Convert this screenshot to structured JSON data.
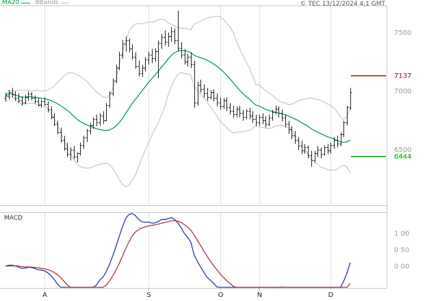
{
  "header": {
    "copyright": "© TEC 13/12/2024 4:1 GMT"
  },
  "chart_data": {
    "type": "candlestick",
    "title": "",
    "months": [
      {
        "label": "A",
        "index": 12
      },
      {
        "label": "S",
        "index": 44
      },
      {
        "label": "O",
        "index": 66
      },
      {
        "label": "N",
        "index": 78
      },
      {
        "label": "D",
        "index": 100
      }
    ],
    "y_axis": {
      "ylim": [
        6030,
        7730
      ],
      "labels": [
        {
          "text": "7500",
          "value": 7500
        },
        {
          "text": "7000",
          "value": 7000
        },
        {
          "text": "6500",
          "value": 6500
        }
      ]
    },
    "levels": [
      {
        "text": "7137",
        "value": 7137,
        "color": "#c00000",
        "name": "resistance-level"
      },
      {
        "text": "6444",
        "value": 6444,
        "color": "#009900",
        "name": "support-level"
      }
    ],
    "indicators": {
      "ma20": {
        "label": "MA20",
        "period": 20,
        "color": "#00a14b"
      },
      "bbands": {
        "label": "BBands",
        "period": 20,
        "mult": 2,
        "color": "#bdbdbd"
      },
      "macd": {
        "label": "MACD",
        "fast": 12,
        "slow": 26,
        "signal": 9,
        "colors": {
          "macd": "#2433c8",
          "signal": "#b03040"
        },
        "ylim": [
          -66.7,
          162.5
        ],
        "labels": [
          {
            "text": "1 00",
            "value": 100
          },
          {
            "text": "0 50",
            "value": 50
          },
          {
            "text": "0 00",
            "value": 0
          }
        ]
      }
    },
    "colors": {
      "candles": "#222222",
      "grid": "#e0e0e0",
      "frame": "#c8c8c8",
      "axis_text": "#9a9a9a",
      "month_text": "#222222"
    },
    "candles": [
      [
        6940,
        6990,
        6910,
        6960
      ],
      [
        6960,
        7010,
        6930,
        6990
      ],
      [
        6990,
        7030,
        6950,
        6970
      ],
      [
        6970,
        7000,
        6920,
        6940
      ],
      [
        6940,
        6980,
        6900,
        6920
      ],
      [
        6920,
        6960,
        6880,
        6900
      ],
      [
        6900,
        6970,
        6890,
        6950
      ],
      [
        6950,
        7000,
        6920,
        6975
      ],
      [
        6975,
        6995,
        6925,
        6940
      ],
      [
        6940,
        6965,
        6895,
        6910
      ],
      [
        6910,
        6940,
        6870,
        6885
      ],
      [
        6885,
        6930,
        6860,
        6915
      ],
      [
        6915,
        6945,
        6875,
        6890
      ],
      [
        6890,
        6910,
        6820,
        6840
      ],
      [
        6840,
        6870,
        6760,
        6780
      ],
      [
        6780,
        6810,
        6700,
        6720
      ],
      [
        6720,
        6750,
        6630,
        6650
      ],
      [
        6650,
        6690,
        6560,
        6580
      ],
      [
        6580,
        6620,
        6490,
        6510
      ],
      [
        6510,
        6560,
        6440,
        6460
      ],
      [
        6460,
        6520,
        6410,
        6500
      ],
      [
        6500,
        6530,
        6420,
        6440
      ],
      [
        6440,
        6480,
        6390,
        6470
      ],
      [
        6470,
        6560,
        6450,
        6540
      ],
      [
        6540,
        6620,
        6510,
        6600
      ],
      [
        6600,
        6680,
        6570,
        6660
      ],
      [
        6660,
        6730,
        6630,
        6710
      ],
      [
        6710,
        6780,
        6680,
        6760
      ],
      [
        6760,
        6800,
        6700,
        6730
      ],
      [
        6730,
        6810,
        6710,
        6790
      ],
      [
        6790,
        6830,
        6720,
        6750
      ],
      [
        6750,
        6900,
        6740,
        6880
      ],
      [
        6880,
        7000,
        6860,
        6980
      ],
      [
        6980,
        7110,
        6960,
        7090
      ],
      [
        7090,
        7230,
        7070,
        7200
      ],
      [
        7200,
        7340,
        7180,
        7310
      ],
      [
        7310,
        7440,
        7280,
        7400
      ],
      [
        7400,
        7470,
        7340,
        7430
      ],
      [
        7430,
        7450,
        7330,
        7360
      ],
      [
        7360,
        7400,
        7270,
        7290
      ],
      [
        7290,
        7330,
        7190,
        7210
      ],
      [
        7210,
        7260,
        7130,
        7150
      ],
      [
        7150,
        7230,
        7120,
        7200
      ],
      [
        7200,
        7290,
        7170,
        7270
      ],
      [
        7270,
        7340,
        7230,
        7310
      ],
      [
        7310,
        7360,
        7240,
        7280
      ],
      [
        7280,
        7370,
        7250,
        7340
      ],
      [
        7340,
        7430,
        7110,
        7410
      ],
      [
        7410,
        7490,
        7360,
        7460
      ],
      [
        7460,
        7520,
        7390,
        7420
      ],
      [
        7420,
        7500,
        7380,
        7470
      ],
      [
        7470,
        7550,
        7420,
        7510
      ],
      [
        7510,
        7540,
        7400,
        7430
      ],
      [
        7430,
        7690,
        7340,
        7370
      ],
      [
        7370,
        7420,
        7280,
        7310
      ],
      [
        7310,
        7360,
        7230,
        7250
      ],
      [
        7250,
        7320,
        7210,
        7290
      ],
      [
        7290,
        7330,
        7200,
        7230
      ],
      [
        7230,
        7260,
        6860,
        6900
      ],
      [
        6900,
        7080,
        6880,
        7050
      ],
      [
        7050,
        7100,
        6990,
        7020
      ],
      [
        7020,
        7060,
        6950,
        6980
      ],
      [
        6980,
        7030,
        6920,
        6950
      ],
      [
        6950,
        7010,
        6930,
        6990
      ],
      [
        6990,
        7020,
        6910,
        6940
      ],
      [
        6940,
        6980,
        6870,
        6900
      ],
      [
        6900,
        6950,
        6840,
        6870
      ],
      [
        6870,
        6940,
        6850,
        6920
      ],
      [
        6920,
        6950,
        6830,
        6860
      ],
      [
        6860,
        6900,
        6800,
        6830
      ],
      [
        6830,
        6880,
        6770,
        6800
      ],
      [
        6800,
        6870,
        6780,
        6850
      ],
      [
        6850,
        6880,
        6780,
        6810
      ],
      [
        6810,
        6840,
        6750,
        6780
      ],
      [
        6780,
        6850,
        6760,
        6830
      ],
      [
        6830,
        6860,
        6760,
        6790
      ],
      [
        6790,
        6830,
        6730,
        6760
      ],
      [
        6760,
        6800,
        6700,
        6730
      ],
      [
        6730,
        6800,
        6710,
        6780
      ],
      [
        6780,
        6810,
        6720,
        6750
      ],
      [
        6750,
        6790,
        6690,
        6720
      ],
      [
        6720,
        6800,
        6700,
        6770
      ],
      [
        6770,
        6840,
        6750,
        6820
      ],
      [
        6820,
        6880,
        6800,
        6850
      ],
      [
        6850,
        6870,
        6780,
        6810
      ],
      [
        6810,
        6840,
        6740,
        6770
      ],
      [
        6770,
        6800,
        6690,
        6720
      ],
      [
        6720,
        6750,
        6640,
        6670
      ],
      [
        6670,
        6700,
        6590,
        6620
      ],
      [
        6620,
        6660,
        6550,
        6580
      ],
      [
        6580,
        6610,
        6500,
        6530
      ],
      [
        6530,
        6580,
        6460,
        6490
      ],
      [
        6490,
        6550,
        6470,
        6520
      ],
      [
        6520,
        6540,
        6430,
        6450
      ],
      [
        6450,
        6490,
        6360,
        6410
      ],
      [
        6410,
        6490,
        6390,
        6470
      ],
      [
        6470,
        6530,
        6440,
        6500
      ],
      [
        6500,
        6520,
        6430,
        6460
      ],
      [
        6460,
        6540,
        6450,
        6520
      ],
      [
        6520,
        6550,
        6460,
        6490
      ],
      [
        6490,
        6560,
        6470,
        6540
      ],
      [
        6540,
        6610,
        6510,
        6580
      ],
      [
        6580,
        6620,
        6520,
        6550
      ],
      [
        6550,
        6650,
        6530,
        6630
      ],
      [
        6630,
        6750,
        6610,
        6730
      ],
      [
        6730,
        6880,
        6710,
        6860
      ],
      [
        6860,
        7030,
        6840,
        6990
      ]
    ]
  }
}
